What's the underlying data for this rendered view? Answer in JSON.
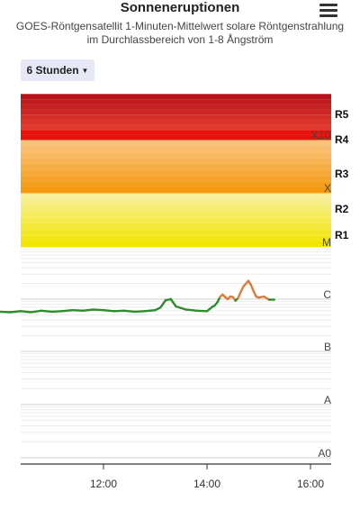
{
  "header": {
    "title": "Sonneneruptionen",
    "subtitle_line1": "GOES-Röntgensatellit 1-Minuten-Mittelwert solare Röntgenstrahlung",
    "subtitle_line2": "im Durchlassbereich von 1-8 Ångström",
    "menu_icon": "hamburger-menu-icon"
  },
  "range_selector": {
    "label": "6 Stunden",
    "icon": "caret-down-icon"
  },
  "chart_data": {
    "type": "line",
    "title": "",
    "xlabel": "",
    "ylabel": "",
    "x_ticks": [
      "12:00",
      "14:00",
      "16:00"
    ],
    "class_labels": [
      "A0",
      "A",
      "B",
      "C",
      "M",
      "X",
      "X10"
    ],
    "radio_blackout_labels": [
      "R1",
      "R2",
      "R3",
      "R4",
      "R5"
    ],
    "y_scale": "log",
    "y_range_class": [
      0,
      7
    ],
    "colors": {
      "below_c": "#2e8b2e",
      "c_class": "#e07b39"
    },
    "series": [
      {
        "values_class": [
          [
            0.0,
            2.76
          ],
          [
            0.2,
            2.75
          ],
          [
            0.4,
            2.77
          ],
          [
            0.6,
            2.75
          ],
          [
            0.8,
            2.78
          ],
          [
            1.0,
            2.76
          ],
          [
            1.2,
            2.77
          ],
          [
            1.4,
            2.79
          ],
          [
            1.6,
            2.78
          ],
          [
            1.8,
            2.8
          ],
          [
            2.0,
            2.79
          ],
          [
            2.2,
            2.77
          ],
          [
            2.4,
            2.78
          ],
          [
            2.6,
            2.76
          ],
          [
            2.8,
            2.77
          ],
          [
            3.0,
            2.79
          ],
          [
            3.1,
            2.84
          ],
          [
            3.2,
            2.98
          ],
          [
            3.3,
            3.0
          ],
          [
            3.4,
            2.86
          ],
          [
            3.5,
            2.83
          ],
          [
            3.6,
            2.8
          ],
          [
            3.8,
            2.78
          ],
          [
            4.0,
            2.77
          ],
          [
            4.1,
            2.85
          ],
          [
            4.15,
            2.88
          ],
          [
            4.2,
            2.94
          ],
          [
            4.25,
            3.04
          ],
          [
            4.3,
            3.09
          ],
          [
            4.35,
            3.04
          ],
          [
            4.4,
            3.0
          ],
          [
            4.45,
            3.05
          ],
          [
            4.5,
            3.04
          ],
          [
            4.55,
            2.97
          ],
          [
            4.6,
            3.02
          ],
          [
            4.7,
            3.24
          ],
          [
            4.8,
            3.35
          ],
          [
            4.85,
            3.27
          ],
          [
            4.9,
            3.15
          ],
          [
            4.95,
            3.05
          ],
          [
            5.0,
            3.03
          ],
          [
            5.1,
            3.05
          ],
          [
            5.2,
            2.99
          ],
          [
            5.3,
            2.99
          ]
        ]
      }
    ]
  }
}
